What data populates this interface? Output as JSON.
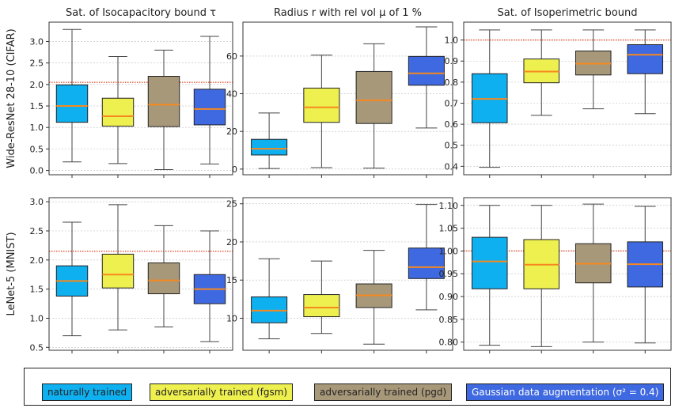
{
  "figure": {
    "column_titles": [
      "Sat. of Isocapacitory bound τ",
      "Radius r with rel vol μ of 1 %",
      "Sat. of Isoperimetric bound"
    ],
    "row_labels": [
      "Wide-ResNet 28-10 (CIFAR)",
      "LeNet-5 (MNIST)"
    ]
  },
  "legend": {
    "items": [
      {
        "label": "naturally trained",
        "color": "#0fb0f0"
      },
      {
        "label": "adversarially trained (fgsm)",
        "color": "#eef04f"
      },
      {
        "label": "adversarially trained (pgd)",
        "color": "#a8987a"
      },
      {
        "label": "Gaussian data augmentation (σ² = 0.4)",
        "color": "#3f69e0"
      }
    ]
  },
  "colors": {
    "median": "#f5891f",
    "reference_line": "#e0401e",
    "grid": "#bbbbbb",
    "box_edge": "#222222",
    "whisker": "#444444"
  },
  "chart_data": [
    {
      "type": "box",
      "row": 0,
      "col": 0,
      "title": "Sat. of Isocapacitory bound τ",
      "ylabel": "Wide-ResNet 28-10 (CIFAR)",
      "ylim": [
        -0.1,
        3.45
      ],
      "yticks": [
        "0.0",
        "0.5",
        "1.0",
        "1.5",
        "2.0",
        "2.5",
        "3.0"
      ],
      "reference_line": 2.05,
      "grid": true,
      "series": [
        {
          "name": "naturally trained",
          "min": 0.2,
          "q1": 1.12,
          "median": 1.5,
          "q3": 1.99,
          "max": 3.28
        },
        {
          "name": "adversarially trained (fgsm)",
          "min": 0.16,
          "q1": 1.03,
          "median": 1.26,
          "q3": 1.68,
          "max": 2.65
        },
        {
          "name": "adversarially trained (pgd)",
          "min": 0.02,
          "q1": 1.02,
          "median": 1.53,
          "q3": 2.19,
          "max": 2.8
        },
        {
          "name": "Gaussian data augmentation (σ² = 0.4)",
          "min": 0.15,
          "q1": 1.06,
          "median": 1.43,
          "q3": 1.89,
          "max": 3.12
        }
      ]
    },
    {
      "type": "box",
      "row": 0,
      "col": 1,
      "title": "Radius r with rel vol μ of 1 %",
      "ylabel": "",
      "ylim": [
        -3,
        78
      ],
      "yticks": [
        "0",
        "20",
        "40",
        "60"
      ],
      "reference_line": null,
      "grid": true,
      "series": [
        {
          "name": "naturally trained",
          "min": 0.3,
          "q1": 7.5,
          "median": 10.8,
          "q3": 15.8,
          "max": 29.8
        },
        {
          "name": "adversarially trained (fgsm)",
          "min": 0.8,
          "q1": 24.8,
          "median": 32.8,
          "q3": 43.0,
          "max": 60.5
        },
        {
          "name": "adversarially trained (pgd)",
          "min": 0.5,
          "q1": 24.2,
          "median": 36.5,
          "q3": 51.8,
          "max": 66.5
        },
        {
          "name": "Gaussian data augmentation (σ² = 0.4)",
          "min": 21.8,
          "q1": 44.5,
          "median": 50.8,
          "q3": 59.8,
          "max": 75.5
        }
      ]
    },
    {
      "type": "box",
      "row": 0,
      "col": 2,
      "title": "Sat. of Isoperimetric bound",
      "ylabel": "",
      "ylim": [
        0.36,
        1.085
      ],
      "yticks": [
        "0.4",
        "0.5",
        "0.6",
        "0.7",
        "0.8",
        "0.9",
        "1.0"
      ],
      "reference_line": 1.0,
      "grid": true,
      "series": [
        {
          "name": "naturally trained",
          "min": 0.395,
          "q1": 0.607,
          "median": 0.72,
          "q3": 0.84,
          "max": 1.048
        },
        {
          "name": "adversarially trained (fgsm)",
          "min": 0.642,
          "q1": 0.797,
          "median": 0.85,
          "q3": 0.91,
          "max": 1.048
        },
        {
          "name": "adversarially trained (pgd)",
          "min": 0.673,
          "q1": 0.834,
          "median": 0.888,
          "q3": 0.948,
          "max": 1.048
        },
        {
          "name": "Gaussian data augmentation (σ² = 0.4)",
          "min": 0.65,
          "q1": 0.84,
          "median": 0.93,
          "q3": 0.978,
          "max": 1.048
        }
      ]
    },
    {
      "type": "box",
      "row": 1,
      "col": 0,
      "title": "",
      "ylabel": "LeNet-5 (MNIST)",
      "ylim": [
        0.45,
        3.07
      ],
      "yticks": [
        "0.5",
        "1.0",
        "1.5",
        "2.0",
        "2.5",
        "3.0"
      ],
      "reference_line": 2.15,
      "grid": true,
      "series": [
        {
          "name": "naturally trained",
          "min": 0.7,
          "q1": 1.38,
          "median": 1.64,
          "q3": 1.9,
          "max": 2.65
        },
        {
          "name": "adversarially trained (fgsm)",
          "min": 0.8,
          "q1": 1.52,
          "median": 1.75,
          "q3": 2.1,
          "max": 2.95
        },
        {
          "name": "adversarially trained (pgd)",
          "min": 0.85,
          "q1": 1.42,
          "median": 1.65,
          "q3": 1.95,
          "max": 2.59
        },
        {
          "name": "Gaussian data augmentation (σ² = 0.4)",
          "min": 0.6,
          "q1": 1.25,
          "median": 1.5,
          "q3": 1.75,
          "max": 2.5
        }
      ]
    },
    {
      "type": "box",
      "row": 1,
      "col": 1,
      "title": "",
      "ylabel": "",
      "ylim": [
        5.8,
        25.8
      ],
      "yticks": [
        "10",
        "15",
        "20",
        "25"
      ],
      "reference_line": null,
      "grid": true,
      "series": [
        {
          "name": "naturally trained",
          "min": 7.3,
          "q1": 9.4,
          "median": 11.0,
          "q3": 12.8,
          "max": 17.8
        },
        {
          "name": "adversarially trained (fgsm)",
          "min": 8.0,
          "q1": 10.2,
          "median": 11.4,
          "q3": 13.1,
          "max": 17.5
        },
        {
          "name": "adversarially trained (pgd)",
          "min": 6.6,
          "q1": 11.4,
          "median": 13.0,
          "q3": 14.5,
          "max": 18.9
        },
        {
          "name": "Gaussian data augmentation (σ² = 0.4)",
          "min": 11.1,
          "q1": 15.2,
          "median": 16.7,
          "q3": 19.2,
          "max": 24.9
        }
      ]
    },
    {
      "type": "box",
      "row": 1,
      "col": 2,
      "title": "",
      "ylabel": "",
      "ylim": [
        0.782,
        1.117
      ],
      "yticks": [
        "0.80",
        "0.85",
        "0.90",
        "0.95",
        "1.00",
        "1.05",
        "1.10"
      ],
      "reference_line": 1.0,
      "grid": true,
      "series": [
        {
          "name": "naturally trained",
          "min": 0.793,
          "q1": 0.917,
          "median": 0.977,
          "q3": 1.03,
          "max": 1.1
        },
        {
          "name": "adversarially trained (fgsm)",
          "min": 0.79,
          "q1": 0.917,
          "median": 0.97,
          "q3": 1.025,
          "max": 1.1
        },
        {
          "name": "adversarially trained (pgd)",
          "min": 0.8,
          "q1": 0.93,
          "median": 0.972,
          "q3": 1.016,
          "max": 1.103
        },
        {
          "name": "Gaussian data augmentation (σ² = 0.4)",
          "min": 0.798,
          "q1": 0.921,
          "median": 0.971,
          "q3": 1.02,
          "max": 1.098
        }
      ]
    }
  ]
}
